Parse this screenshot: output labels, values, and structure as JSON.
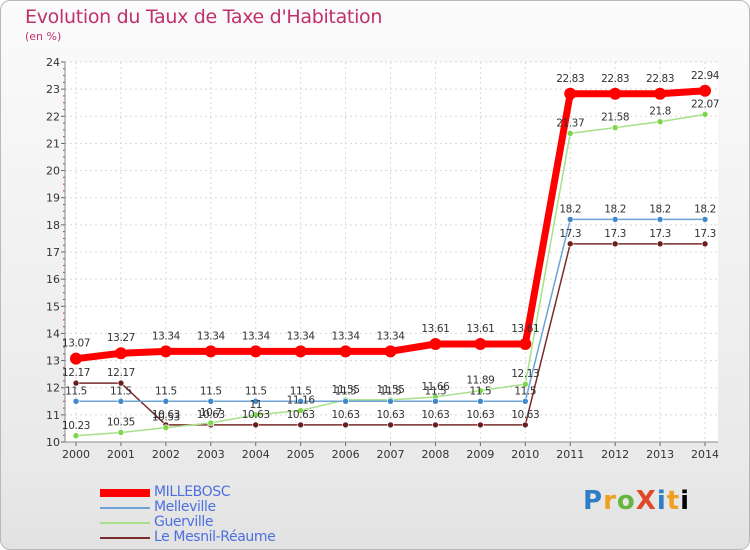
{
  "title": "Evolution du Taux de Taxe d'Habitation",
  "unit_label": "(en %)",
  "brand": "ProXiti",
  "chart_data": {
    "type": "line",
    "title": "Evolution du Taux de Taxe d'Habitation",
    "ylabel": "(en %)",
    "xlabel": "",
    "ylim": [
      10,
      24
    ],
    "yticks": [
      10,
      11,
      12,
      13,
      14,
      15,
      16,
      17,
      18,
      19,
      20,
      21,
      22,
      23,
      24
    ],
    "grid": true,
    "legend": "bottom-left",
    "categories": [
      "2000",
      "2001",
      "2002",
      "2003",
      "2004",
      "2005",
      "2006",
      "2007",
      "2008",
      "2009",
      "2010",
      "2011",
      "2012",
      "2013",
      "2014"
    ],
    "series": [
      {
        "name": "MILLEBOSC",
        "color": "#ff0000",
        "values": [
          13.07,
          13.27,
          13.34,
          13.34,
          13.34,
          13.34,
          13.34,
          13.34,
          13.61,
          13.61,
          13.61,
          22.83,
          22.83,
          22.83,
          22.94
        ]
      },
      {
        "name": "Melleville",
        "color": "#6ca3d6",
        "values": [
          11.5,
          11.5,
          11.5,
          11.5,
          11.5,
          11.5,
          11.5,
          11.5,
          11.5,
          11.5,
          11.5,
          18.2,
          18.2,
          18.2,
          18.2
        ]
      },
      {
        "name": "Guerville",
        "color": "#a6e08a",
        "values": [
          10.23,
          10.35,
          10.53,
          10.7,
          11.0,
          11.16,
          11.55,
          11.55,
          11.66,
          11.89,
          12.13,
          21.37,
          21.58,
          21.8,
          22.07
        ]
      },
      {
        "name": "Le Mesnil-Réaume",
        "color": "#7a2b2b",
        "values": [
          12.17,
          12.17,
          10.63,
          10.63,
          10.63,
          10.63,
          10.63,
          10.63,
          10.63,
          10.63,
          10.63,
          17.3,
          17.3,
          17.3,
          17.3
        ]
      }
    ]
  }
}
